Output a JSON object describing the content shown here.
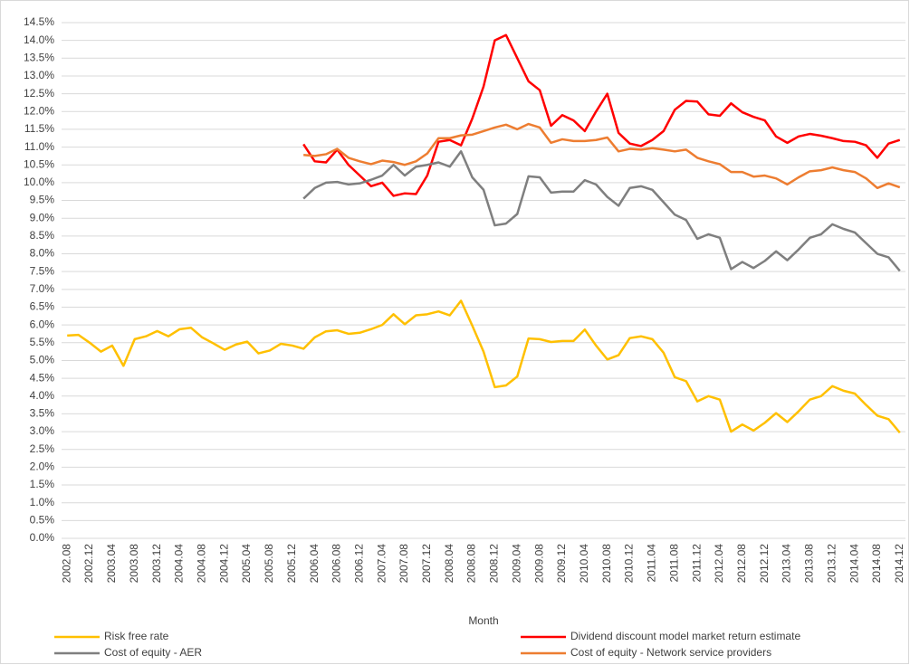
{
  "chart_data": {
    "type": "line",
    "x_label": "Month",
    "categories": [
      "2002.08",
      null,
      "2002.12",
      null,
      "2003.04",
      null,
      "2003.08",
      null,
      "2003.12",
      null,
      "2004.04",
      null,
      "2004.08",
      null,
      "2004.12",
      null,
      "2005.04",
      null,
      "2005.08",
      null,
      "2005.12",
      null,
      "2006.04",
      null,
      "2006.08",
      null,
      "2006.12",
      null,
      "2007.04",
      null,
      "2007.08",
      null,
      "2007.12",
      null,
      "2008.04",
      null,
      "2008.08",
      null,
      "2008.12",
      null,
      "2009.04",
      null,
      "2009.08",
      null,
      "2009.12",
      null,
      "2010.04",
      null,
      "2010.08",
      null,
      "2010.12",
      null,
      "2011.04",
      null,
      "2011.08",
      null,
      "2011.12",
      null,
      "2012.04",
      null,
      "2012.08",
      null,
      "2012.12",
      null,
      "2013.04",
      null,
      "2013.08",
      null,
      "2013.12",
      null,
      "2014.04",
      null,
      "2014.08",
      null,
      "2014.12"
    ],
    "series": [
      {
        "name": "Risk free rate",
        "color": "#FFC000",
        "values": [
          5.7,
          5.72,
          5.5,
          5.25,
          5.42,
          4.85,
          5.6,
          5.68,
          5.83,
          5.68,
          5.88,
          5.92,
          5.65,
          5.48,
          5.3,
          5.45,
          5.53,
          5.2,
          5.28,
          5.47,
          5.42,
          5.33,
          5.65,
          5.82,
          5.85,
          5.75,
          5.78,
          5.88,
          6.0,
          6.3,
          6.02,
          6.27,
          6.3,
          6.38,
          6.27,
          6.68,
          5.98,
          5.25,
          4.25,
          4.3,
          4.55,
          5.62,
          5.6,
          5.52,
          5.55,
          5.55,
          5.87,
          5.42,
          5.03,
          5.15,
          5.63,
          5.68,
          5.6,
          5.22,
          4.53,
          4.42,
          3.85,
          4.0,
          3.9,
          3.0,
          3.2,
          3.03,
          3.25,
          3.52,
          3.27,
          3.57,
          3.9,
          4.0,
          4.28,
          4.15,
          4.07,
          3.75,
          3.45,
          3.35,
          2.97
        ]
      },
      {
        "name": "Dividend discount model market return estimate",
        "color": "#FF0000",
        "values": [
          null,
          null,
          null,
          null,
          null,
          null,
          null,
          null,
          null,
          null,
          null,
          null,
          null,
          null,
          null,
          null,
          null,
          null,
          null,
          null,
          null,
          11.08,
          10.6,
          10.57,
          10.93,
          10.5,
          10.2,
          9.9,
          10.0,
          9.63,
          9.7,
          9.68,
          10.2,
          11.15,
          11.2,
          11.05,
          11.8,
          12.7,
          14.0,
          14.15,
          13.5,
          12.85,
          12.6,
          11.6,
          11.9,
          11.75,
          11.45,
          12.0,
          12.5,
          11.4,
          11.1,
          11.03,
          11.2,
          11.45,
          12.05,
          12.3,
          12.28,
          11.92,
          11.88,
          12.23,
          11.98,
          11.85,
          11.75,
          11.3,
          11.12,
          11.3,
          11.37,
          11.32,
          11.25,
          11.17,
          11.15,
          11.05,
          10.7,
          11.1,
          11.2
        ]
      },
      {
        "name": "Cost of equity - AER",
        "color": "#7F7F7F",
        "values": [
          null,
          null,
          null,
          null,
          null,
          null,
          null,
          null,
          null,
          null,
          null,
          null,
          null,
          null,
          null,
          null,
          null,
          null,
          null,
          null,
          null,
          9.55,
          9.85,
          10.0,
          10.02,
          9.95,
          9.98,
          10.08,
          10.2,
          10.5,
          10.2,
          10.45,
          10.5,
          10.57,
          10.45,
          10.88,
          10.15,
          9.8,
          8.8,
          8.85,
          9.12,
          10.18,
          10.15,
          9.72,
          9.75,
          9.75,
          10.07,
          9.95,
          9.6,
          9.35,
          9.85,
          9.9,
          9.8,
          9.45,
          9.1,
          8.95,
          8.42,
          8.55,
          8.45,
          7.57,
          7.77,
          7.6,
          7.8,
          8.07,
          7.82,
          8.12,
          8.45,
          8.55,
          8.83,
          8.7,
          8.6,
          8.3,
          8.0,
          7.9,
          7.52
        ]
      },
      {
        "name": "Cost of equity - Network service providers",
        "color": "#ED7D31",
        "values": [
          null,
          null,
          null,
          null,
          null,
          null,
          null,
          null,
          null,
          null,
          null,
          null,
          null,
          null,
          null,
          null,
          null,
          null,
          null,
          null,
          null,
          10.78,
          10.75,
          10.8,
          10.95,
          10.7,
          10.6,
          10.52,
          10.62,
          10.58,
          10.5,
          10.6,
          10.82,
          11.25,
          11.25,
          11.33,
          11.35,
          11.45,
          11.55,
          11.63,
          11.5,
          11.65,
          11.55,
          11.12,
          11.22,
          11.17,
          11.17,
          11.2,
          11.27,
          10.88,
          10.95,
          10.93,
          10.97,
          10.93,
          10.88,
          10.93,
          10.7,
          10.6,
          10.52,
          10.3,
          10.3,
          10.17,
          10.2,
          10.12,
          9.95,
          10.15,
          10.32,
          10.35,
          10.43,
          10.35,
          10.3,
          10.12,
          9.85,
          9.98,
          9.87
        ]
      }
    ],
    "ylim": [
      0,
      14.5
    ],
    "yticks": [
      {
        "value": 0,
        "label": "0.0%"
      },
      {
        "value": 0.5,
        "label": "0.5%"
      },
      {
        "value": 1,
        "label": "1.0%"
      },
      {
        "value": 1.5,
        "label": "1.5%"
      },
      {
        "value": 2,
        "label": "2.0%"
      },
      {
        "value": 2.5,
        "label": "2.5%"
      },
      {
        "value": 3,
        "label": "3.0%"
      },
      {
        "value": 3.5,
        "label": "3.5%"
      },
      {
        "value": 4,
        "label": "4.0%"
      },
      {
        "value": 4.5,
        "label": "4.5%"
      },
      {
        "value": 5,
        "label": "5.0%"
      },
      {
        "value": 5.5,
        "label": "5.5%"
      },
      {
        "value": 6,
        "label": "6.0%"
      },
      {
        "value": 6.5,
        "label": "6.5%"
      },
      {
        "value": 7,
        "label": "7.0%"
      },
      {
        "value": 7.5,
        "label": "7.5%"
      },
      {
        "value": 8,
        "label": "8.0%"
      },
      {
        "value": 8.5,
        "label": "8.5%"
      },
      {
        "value": 9,
        "label": "9.0%"
      },
      {
        "value": 9.5,
        "label": "9.5%"
      },
      {
        "value": 10,
        "label": "10.0%"
      },
      {
        "value": 10.5,
        "label": "10.5%"
      },
      {
        "value": 11,
        "label": "11.0%"
      },
      {
        "value": 11.5,
        "label": "11.5%"
      },
      {
        "value": 12,
        "label": "12.0%"
      },
      {
        "value": 12.5,
        "label": "12.5%"
      },
      {
        "value": 13,
        "label": "13.0%"
      },
      {
        "value": 13.5,
        "label": "13.5%"
      },
      {
        "value": 14,
        "label": "14.0%"
      },
      {
        "value": 14.5,
        "label": "14.5%"
      }
    ],
    "grid": true,
    "legend": "bottom"
  }
}
